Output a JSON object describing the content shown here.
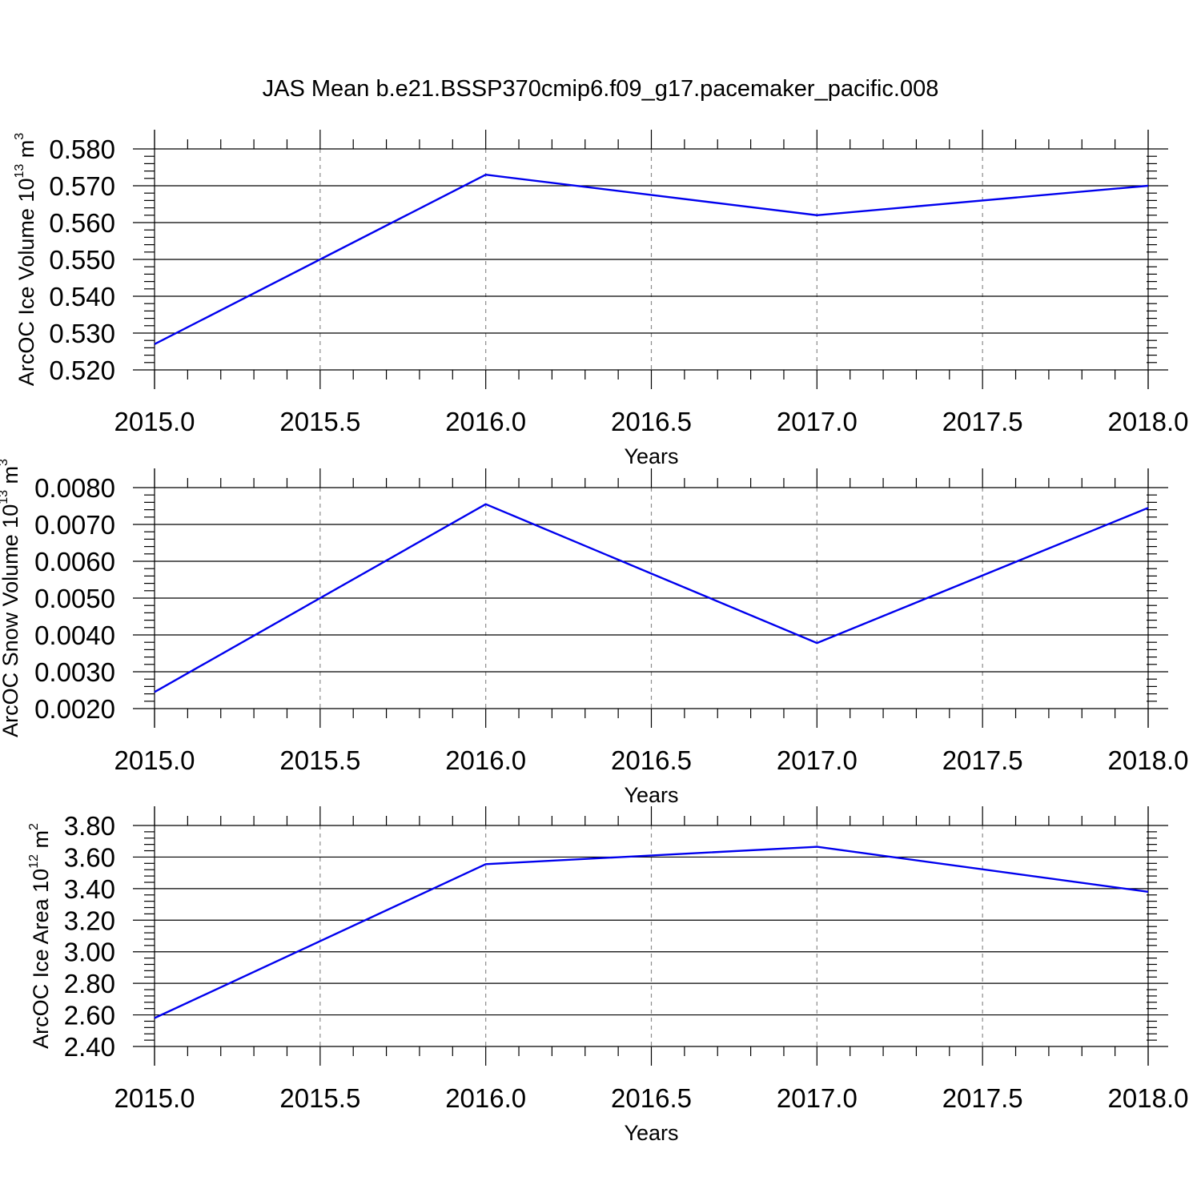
{
  "figure": {
    "title": "JAS Mean b.e21.BSSP370cmip6.f09_g17.pacemaker_pacific.008"
  },
  "chart_data": [
    {
      "type": "line",
      "xlabel": "Years",
      "ylabel": {
        "text": "ArcOC Ice Volume 10",
        "sup": "13",
        "unit": " m",
        "unit_sup": "3"
      },
      "xlim": [
        2015.0,
        2018.0
      ],
      "ylim": [
        0.52,
        0.58
      ],
      "x_ticks": [
        "2015.0",
        "2015.5",
        "2016.0",
        "2016.5",
        "2017.0",
        "2017.5",
        "2018.0"
      ],
      "y_ticks": [
        "0.520",
        "0.530",
        "0.540",
        "0.550",
        "0.560",
        "0.570",
        "0.580"
      ],
      "grid_x": true,
      "series": [
        {
          "color": "#0000ee",
          "x": [
            2015,
            2016,
            2017,
            2018
          ],
          "values": [
            0.527,
            0.573,
            0.562,
            0.57
          ]
        }
      ]
    },
    {
      "type": "line",
      "xlabel": "Years",
      "ylabel": {
        "text": "ArcOC Snow Volume 10",
        "sup": "13",
        "unit": " m",
        "unit_sup": "3"
      },
      "xlim": [
        2015.0,
        2018.0
      ],
      "ylim": [
        0.002,
        0.008
      ],
      "x_ticks": [
        "2015.0",
        "2015.5",
        "2016.0",
        "2016.5",
        "2017.0",
        "2017.5",
        "2018.0"
      ],
      "y_ticks": [
        "0.0020",
        "0.0030",
        "0.0040",
        "0.0050",
        "0.0060",
        "0.0070",
        "0.0080"
      ],
      "grid_x": true,
      "series": [
        {
          "color": "#0000ee",
          "x": [
            2015,
            2016,
            2017,
            2018
          ],
          "values": [
            0.00245,
            0.00755,
            0.00378,
            0.00745
          ]
        }
      ]
    },
    {
      "type": "line",
      "xlabel": "Years",
      "ylabel": {
        "text": "ArcOC Ice Area 10",
        "sup": "12",
        "unit": " m",
        "unit_sup": "2"
      },
      "xlim": [
        2015.0,
        2018.0
      ],
      "ylim": [
        2.4,
        3.8
      ],
      "x_ticks": [
        "2015.0",
        "2015.5",
        "2016.0",
        "2016.5",
        "2017.0",
        "2017.5",
        "2018.0"
      ],
      "y_ticks": [
        "2.40",
        "2.60",
        "2.80",
        "3.00",
        "3.20",
        "3.40",
        "3.60",
        "3.80"
      ],
      "grid_x": true,
      "series": [
        {
          "color": "#0000ee",
          "x": [
            2015,
            2016,
            2017,
            2018
          ],
          "values": [
            2.58,
            3.555,
            3.665,
            3.38
          ]
        }
      ]
    }
  ]
}
